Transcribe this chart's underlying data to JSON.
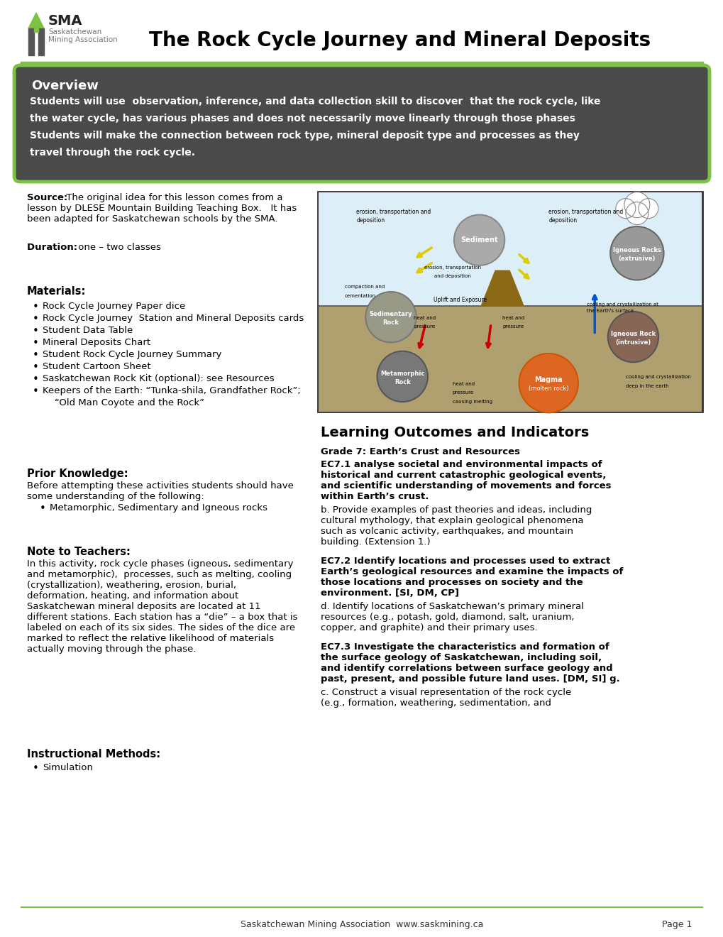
{
  "title": "The Rock Cycle Journey and Mineral Deposits",
  "header_line_color": "#7DC242",
  "overview_title": "Overview",
  "overview_bg": "#4a4a4a",
  "overview_border": "#7DC242",
  "overview_line1": "Students will use  observation, inference, and data collection skill to discover  that the rock cycle, like",
  "overview_line2": "the water cycle, has various phases and does not necessarily move linearly through those phases",
  "overview_line3": "Students will make the connection between rock type, mineral deposit type and processes as they",
  "overview_line4": "travel through the rock cycle.",
  "source_bold": "Source:",
  "source_rest1": " The original idea for this lesson comes from a",
  "source_rest2": "lesson by DLESE Mountain Building Teaching Box.   It has",
  "source_rest3": "been adapted for Saskatchewan schools by the SMA.",
  "duration_bold": "Duration: ",
  "duration_rest": " one – two classes",
  "materials_title": "Materials:",
  "materials_items": [
    "Rock Cycle Journey Paper dice",
    "Rock Cycle Journey  Station and Mineral Deposits cards",
    "Student Data Table",
    "Mineral Deposits Chart",
    "Student Rock Cycle Journey Summary",
    "Student Cartoon Sheet",
    "Saskatchewan Rock Kit (optional): see Resources",
    "Keepers of the Earth: “Tunka-shila, Grandfather Rock”;"
  ],
  "materials_item8b": "    “Old Man Coyote and the Rock”",
  "prior_title": "Prior Knowledge:",
  "prior_text1": "Before attempting these activities students should have",
  "prior_text2": "some understanding of the following:",
  "prior_items": [
    "Metamorphic, Sedimentary and Igneous rocks"
  ],
  "note_title": "Note to Teachers:",
  "note_lines": [
    "In this activity, rock cycle phases (igneous, sedimentary",
    "and metamorphic),  processes, such as melting, cooling",
    "(crystallization), weathering, erosion, burial,",
    "deformation, heating, and information about",
    "Saskatchewan mineral deposits are located at 11",
    "different stations. Each station has a “die” – a box that is",
    "labeled on each of its six sides. The sides of the dice are",
    "marked to reflect the relative likelihood of materials",
    "actually moving through the phase."
  ],
  "instructional_title": "Instructional Methods:",
  "instructional_items": [
    "Simulation"
  ],
  "learning_title": "Learning Outcomes and Indicators",
  "grade_bold": "Grade 7: Earth’s Crust and Resources",
  "ec71_bold_lines": [
    "EC7.1 analyse societal and environmental impacts of",
    "historical and current catastrophic geological events,",
    "and scientific understanding of movements and forces",
    "within Earth’s crust."
  ],
  "ec71_text_lines": [
    "b. Provide examples of past theories and ideas, including",
    "cultural mythology, that explain geological phenomena",
    "such as volcanic activity, earthquakes, and mountain",
    "building. (Extension 1.)"
  ],
  "ec72_bold_lines": [
    "EC7.2 Identify locations and processes used to extract",
    "Earth’s geological resources and examine the impacts of",
    "those locations and processes on society and the",
    "environment. [SI, DM, CP]"
  ],
  "ec72_text_lines": [
    "d. Identify locations of Saskatchewan’s primary mineral",
    "resources (e.g., potash, gold, diamond, salt, uranium,",
    "copper, and graphite) and their primary uses."
  ],
  "ec73_bold_lines": [
    "EC7.3 Investigate the characteristics and formation of",
    "the surface geology of Saskatchewan, including soil,",
    "and identify correlations between surface geology and",
    "past, present, and possible future land uses. [DM, SI] g."
  ],
  "ec73_text_lines": [
    "c. Construct a visual representation of the rock cycle",
    "(e.g., formation, weathering, sedimentation, and"
  ],
  "footer_text": "Saskatchewan Mining Association  www.saskmining.ca",
  "footer_page": "Page 1",
  "footer_line_color": "#7DC242",
  "bg_color": "#ffffff"
}
